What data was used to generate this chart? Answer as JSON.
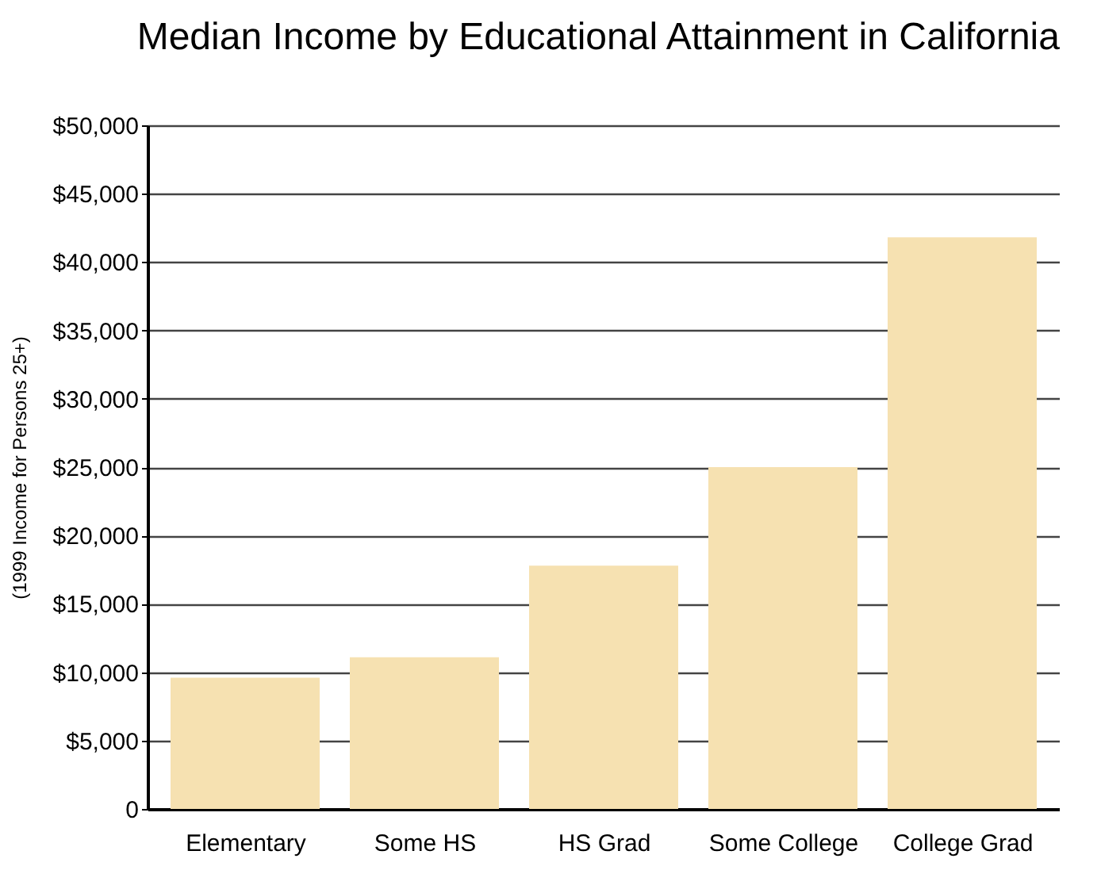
{
  "chart_data": {
    "type": "bar",
    "title": "Median Income by Educational Attainment in California",
    "ylabel": "(1999 Income for Persons 25+)",
    "categories": [
      "Elementary",
      "Some HS",
      "HS Grad",
      "Some College",
      "College Grad"
    ],
    "values": [
      9600,
      11100,
      17800,
      25000,
      41800
    ],
    "color": "#f6e1b1",
    "ylim": [
      0,
      50000
    ],
    "yticks": [
      {
        "value": 0,
        "label": "0"
      },
      {
        "value": 5000,
        "label": "$5,000"
      },
      {
        "value": 10000,
        "label": "$10,000"
      },
      {
        "value": 15000,
        "label": "$15,000"
      },
      {
        "value": 20000,
        "label": "$20,000"
      },
      {
        "value": 25000,
        "label": "$25,000"
      },
      {
        "value": 30000,
        "label": "$30,000"
      },
      {
        "value": 35000,
        "label": "$35,000"
      },
      {
        "value": 40000,
        "label": "$40,000"
      },
      {
        "value": 45000,
        "label": "$45,000"
      },
      {
        "value": 50000,
        "label": "$50,000"
      }
    ],
    "grid": "y"
  }
}
